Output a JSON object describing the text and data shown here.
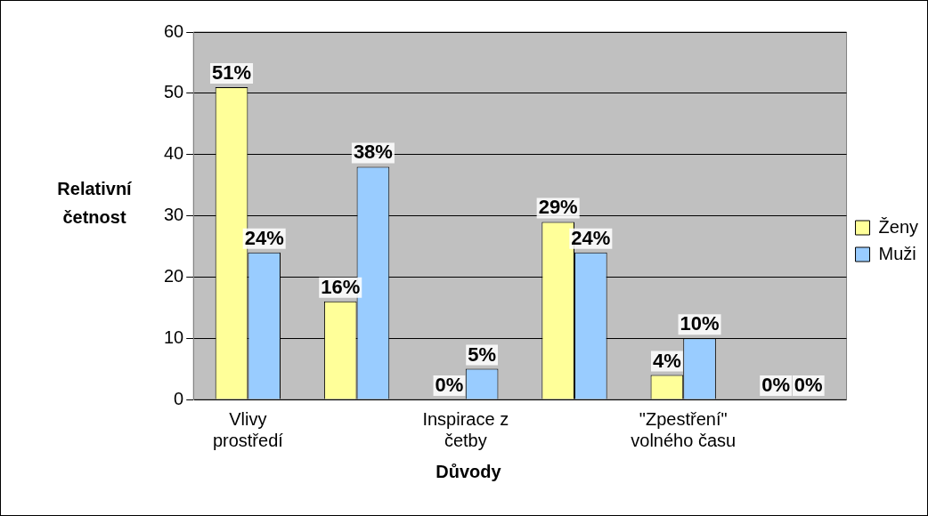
{
  "chart_data": {
    "type": "bar",
    "xlabel": "Důvody",
    "ylabel": "Relativní četnost",
    "categories": [
      "Vlivy prostředí",
      null,
      "Inspirace z četby",
      null,
      "\"Zpestření\" volného času",
      null
    ],
    "series": [
      {
        "name": "Ženy",
        "color": "#ffff99",
        "values": [
          51,
          16,
          0,
          29,
          4,
          0
        ],
        "value_labels": [
          "51%",
          "16%",
          "0%",
          "29%",
          "4%",
          "0%"
        ]
      },
      {
        "name": "Muži",
        "color": "#99ccff",
        "values": [
          24,
          38,
          5,
          24,
          10,
          0
        ],
        "value_labels": [
          "24%",
          "38%",
          "5%",
          "24%",
          "10%",
          "0%"
        ]
      }
    ],
    "ylim": [
      0,
      60
    ],
    "yticks": [
      0,
      10,
      20,
      30,
      40,
      50,
      60
    ],
    "grid": "y",
    "legend": "right"
  }
}
